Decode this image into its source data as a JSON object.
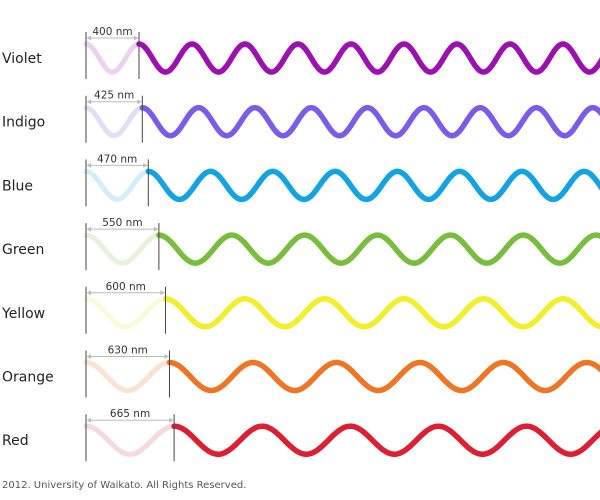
{
  "bands": [
    {
      "name": "Violet",
      "wavelength_label": "400 nm",
      "wavelength_nm": 400,
      "color": "#9c0fb0",
      "light_color": "#ecd2f0"
    },
    {
      "name": "Indigo",
      "wavelength_label": "425 nm",
      "wavelength_nm": 425,
      "color": "#7b5ce8",
      "light_color": "#e3ddf8"
    },
    {
      "name": "Blue",
      "wavelength_label": "470 nm",
      "wavelength_nm": 470,
      "color": "#12a3e2",
      "light_color": "#d3eef9"
    },
    {
      "name": "Green",
      "wavelength_label": "550 nm",
      "wavelength_nm": 550,
      "color": "#78be3c",
      "light_color": "#e6f2dc"
    },
    {
      "name": "Yellow",
      "wavelength_label": "600 nm",
      "wavelength_nm": 600,
      "color": "#f2ee2a",
      "light_color": "#fbfad8"
    },
    {
      "name": "Orange",
      "wavelength_label": "630 nm",
      "wavelength_nm": 630,
      "color": "#ef7524",
      "light_color": "#fbe2d3"
    },
    {
      "name": "Red",
      "wavelength_label": "665 nm",
      "wavelength_nm": 665,
      "color": "#dc1f33",
      "light_color": "#f7d8dc"
    }
  ],
  "copyright": "2012. University of Waikato. All Rights Reserved."
}
